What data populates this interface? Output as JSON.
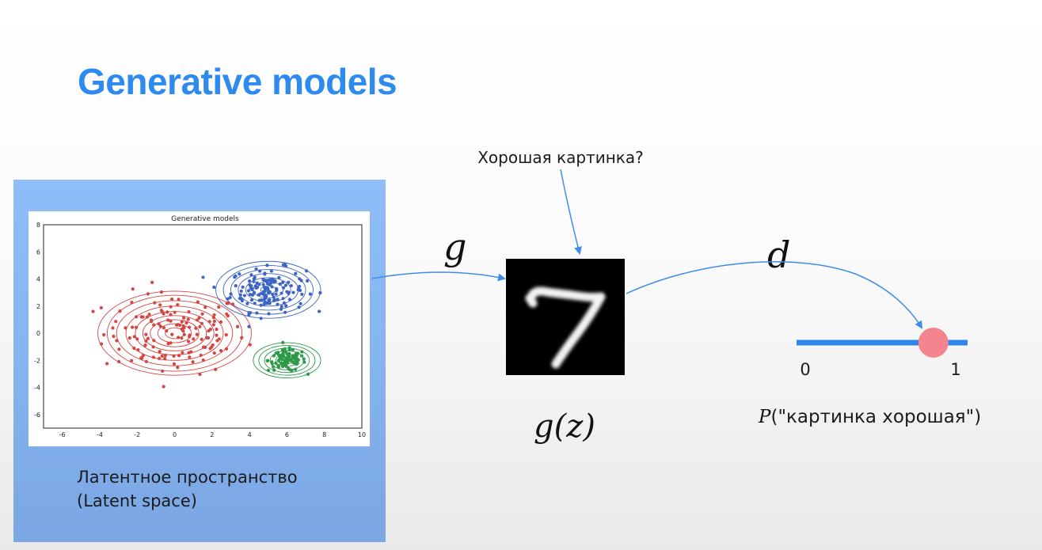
{
  "slide": {
    "title": "Generative models"
  },
  "latent": {
    "caption_line1": "Латентное пространство",
    "caption_line2": "(Latent space)"
  },
  "scatter": {
    "title": "Generative models",
    "x_ticks": [
      "-6",
      "-4",
      "-2",
      "0",
      "2",
      "4",
      "6",
      "8",
      "10"
    ],
    "y_ticks": [
      "8",
      "6",
      "4",
      "2",
      "0",
      "-2",
      "-4",
      "-6"
    ],
    "xlim": [
      -7,
      10
    ],
    "ylim": [
      -7,
      8
    ],
    "clusters": [
      {
        "color": "#d64541",
        "center": [
          0,
          0
        ],
        "spread": [
          1.9,
          1.5
        ],
        "count": 150,
        "contour_radii": [
          [
            0.5,
            0.4
          ],
          [
            0.9,
            0.7
          ],
          [
            1.3,
            1.0
          ],
          [
            1.7,
            1.3
          ],
          [
            2.1,
            1.6
          ],
          [
            2.6,
            2.0
          ],
          [
            3.1,
            2.4
          ],
          [
            3.6,
            2.8
          ],
          [
            4.1,
            3.1
          ]
        ]
      },
      {
        "color": "#3d63c4",
        "center": [
          5,
          3.2
        ],
        "spread": [
          1.0,
          0.8
        ],
        "count": 150,
        "contour_radii": [
          [
            0.4,
            0.3
          ],
          [
            0.8,
            0.6
          ],
          [
            1.2,
            0.9
          ],
          [
            1.6,
            1.2
          ],
          [
            2.0,
            1.5
          ],
          [
            2.4,
            1.8
          ],
          [
            2.8,
            2.1
          ]
        ]
      },
      {
        "color": "#2e9a48",
        "center": [
          6,
          -2
        ],
        "spread": [
          0.5,
          0.4
        ],
        "count": 100,
        "contour_radii": [
          [
            0.3,
            0.25
          ],
          [
            0.6,
            0.45
          ],
          [
            0.9,
            0.7
          ],
          [
            1.2,
            0.9
          ],
          [
            1.5,
            1.1
          ],
          [
            1.8,
            1.3
          ]
        ]
      }
    ]
  },
  "diagram": {
    "question": "Хорошая картинка?",
    "g_label": "g",
    "d_label": "d",
    "gz_label": "g(z)",
    "prob_label_prefix": "P",
    "prob_label_rest": "(\"картинка хорошая\")",
    "axis_start": "0",
    "axis_end": "1",
    "probability": 0.8,
    "arrow_color": "#3f8de8",
    "marker_color": "#f4858f"
  }
}
